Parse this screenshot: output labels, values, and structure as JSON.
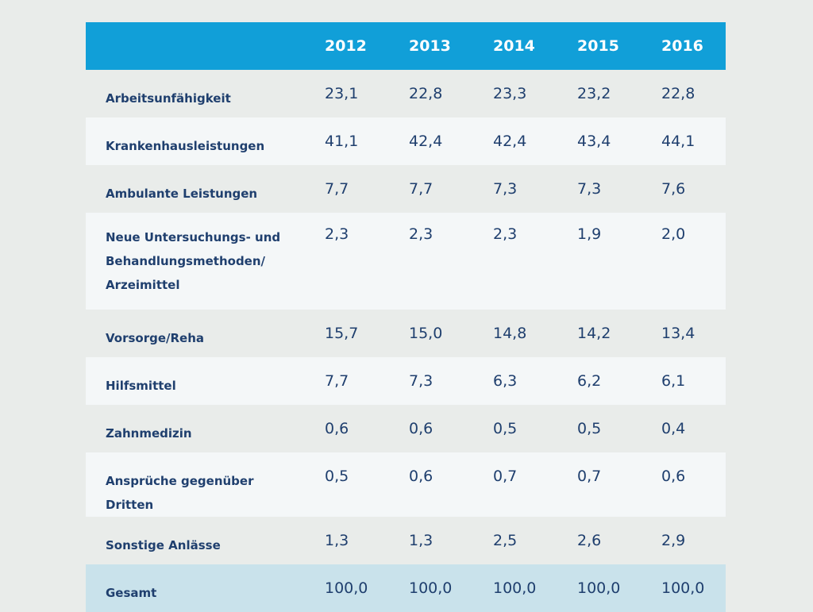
{
  "chart_data": {
    "type": "table",
    "columns": [
      "",
      "2012",
      "2013",
      "2014",
      "2015",
      "2016"
    ],
    "rows": [
      {
        "label": "Arbeitsunfähigkeit",
        "values": [
          "23,1",
          "22,8",
          "23,3",
          "23,2",
          "22,8"
        ]
      },
      {
        "label": "Krankenhausleistungen",
        "values": [
          "41,1",
          "42,4",
          "42,4",
          "43,4",
          "44,1"
        ]
      },
      {
        "label": "Ambulante Leistungen",
        "values": [
          "7,7",
          "7,7",
          "7,3",
          "7,3",
          "7,6"
        ]
      },
      {
        "label_lines": [
          "Neue Untersuchungs- und",
          "Behandlungsmethoden/",
          "Arzeimittel"
        ],
        "values": [
          "2,3",
          "2,3",
          "2,3",
          "1,9",
          "2,0"
        ]
      },
      {
        "label": "Vorsorge/Reha",
        "values": [
          "15,7",
          "15,0",
          "14,8",
          "14,2",
          "13,4"
        ]
      },
      {
        "label": "Hilfsmittel",
        "values": [
          "7,7",
          "7,3",
          "6,3",
          "6,2",
          "6,1"
        ]
      },
      {
        "label": "Zahnmedizin",
        "values": [
          "0,6",
          "0,6",
          "0,5",
          "0,5",
          "0,4"
        ]
      },
      {
        "label": "Ansprüche gegenüber Dritten",
        "values": [
          "0,5",
          "0,6",
          "0,7",
          "0,7",
          "0,6"
        ]
      },
      {
        "label": "Sonstige Anlässe",
        "values": [
          "1,3",
          "1,3",
          "2,5",
          "2,6",
          "2,9"
        ]
      },
      {
        "label": "Gesamt",
        "values": [
          "100,0",
          "100,0",
          "100,0",
          "100,0",
          "100,0"
        ]
      }
    ],
    "colors": {
      "header_bg": "#119fd8",
      "header_text": "#ffffff",
      "body_text": "#1f3f6e",
      "row_light": "#f4f7f8",
      "row_grey": "#e9ecea",
      "total_row": "#c9e2eb"
    }
  }
}
